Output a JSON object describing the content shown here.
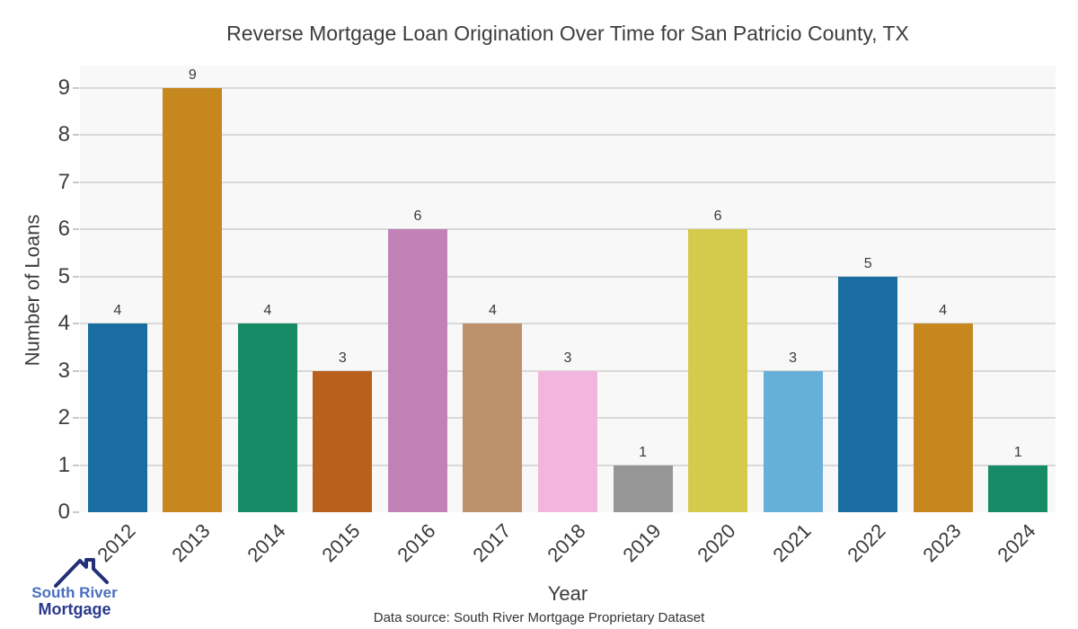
{
  "title": "Reverse Mortgage Loan Origination Over Time for San Patricio County, TX",
  "chart_data": {
    "type": "bar",
    "title": "Reverse Mortgage Loan Origination Over Time for San Patricio County, TX",
    "categories": [
      "2012",
      "2013",
      "2014",
      "2015",
      "2016",
      "2017",
      "2018",
      "2019",
      "2020",
      "2021",
      "2022",
      "2023",
      "2024"
    ],
    "values": [
      4,
      9,
      4,
      3,
      6,
      4,
      3,
      1,
      6,
      3,
      5,
      4,
      1
    ],
    "bar_colors": [
      "#1a6da0",
      "#c5871e",
      "#168b66",
      "#b9601d",
      "#c183b7",
      "#bc916c",
      "#f2b6de",
      "#969696",
      "#d4ca4c",
      "#66afd9",
      "#1a6da0",
      "#c5871e",
      "#168b66"
    ],
    "xlabel": "Year",
    "ylabel": "Number of Loans",
    "ylim": [
      0,
      9.5
    ],
    "yticks": [
      0,
      1,
      2,
      3,
      4,
      5,
      6,
      7,
      8,
      9
    ],
    "grid": true,
    "legend": "none",
    "bar_value_labels": [
      4,
      9,
      4,
      3,
      6,
      4,
      3,
      1,
      6,
      3,
      5,
      4,
      1
    ]
  },
  "footer": {
    "data_source": "Data source: South River Mortgage Proprietary Dataset"
  },
  "logo": {
    "line1": "South River",
    "line2": "Mortgage",
    "line1_color": "#4a6fbd",
    "line2_color": "#2b3a8c",
    "roof_color": "#232f77"
  },
  "colors": {
    "plot_background": "#f8f8f8",
    "gridline": "#d9d9d9",
    "text": "#3d3d3d"
  }
}
